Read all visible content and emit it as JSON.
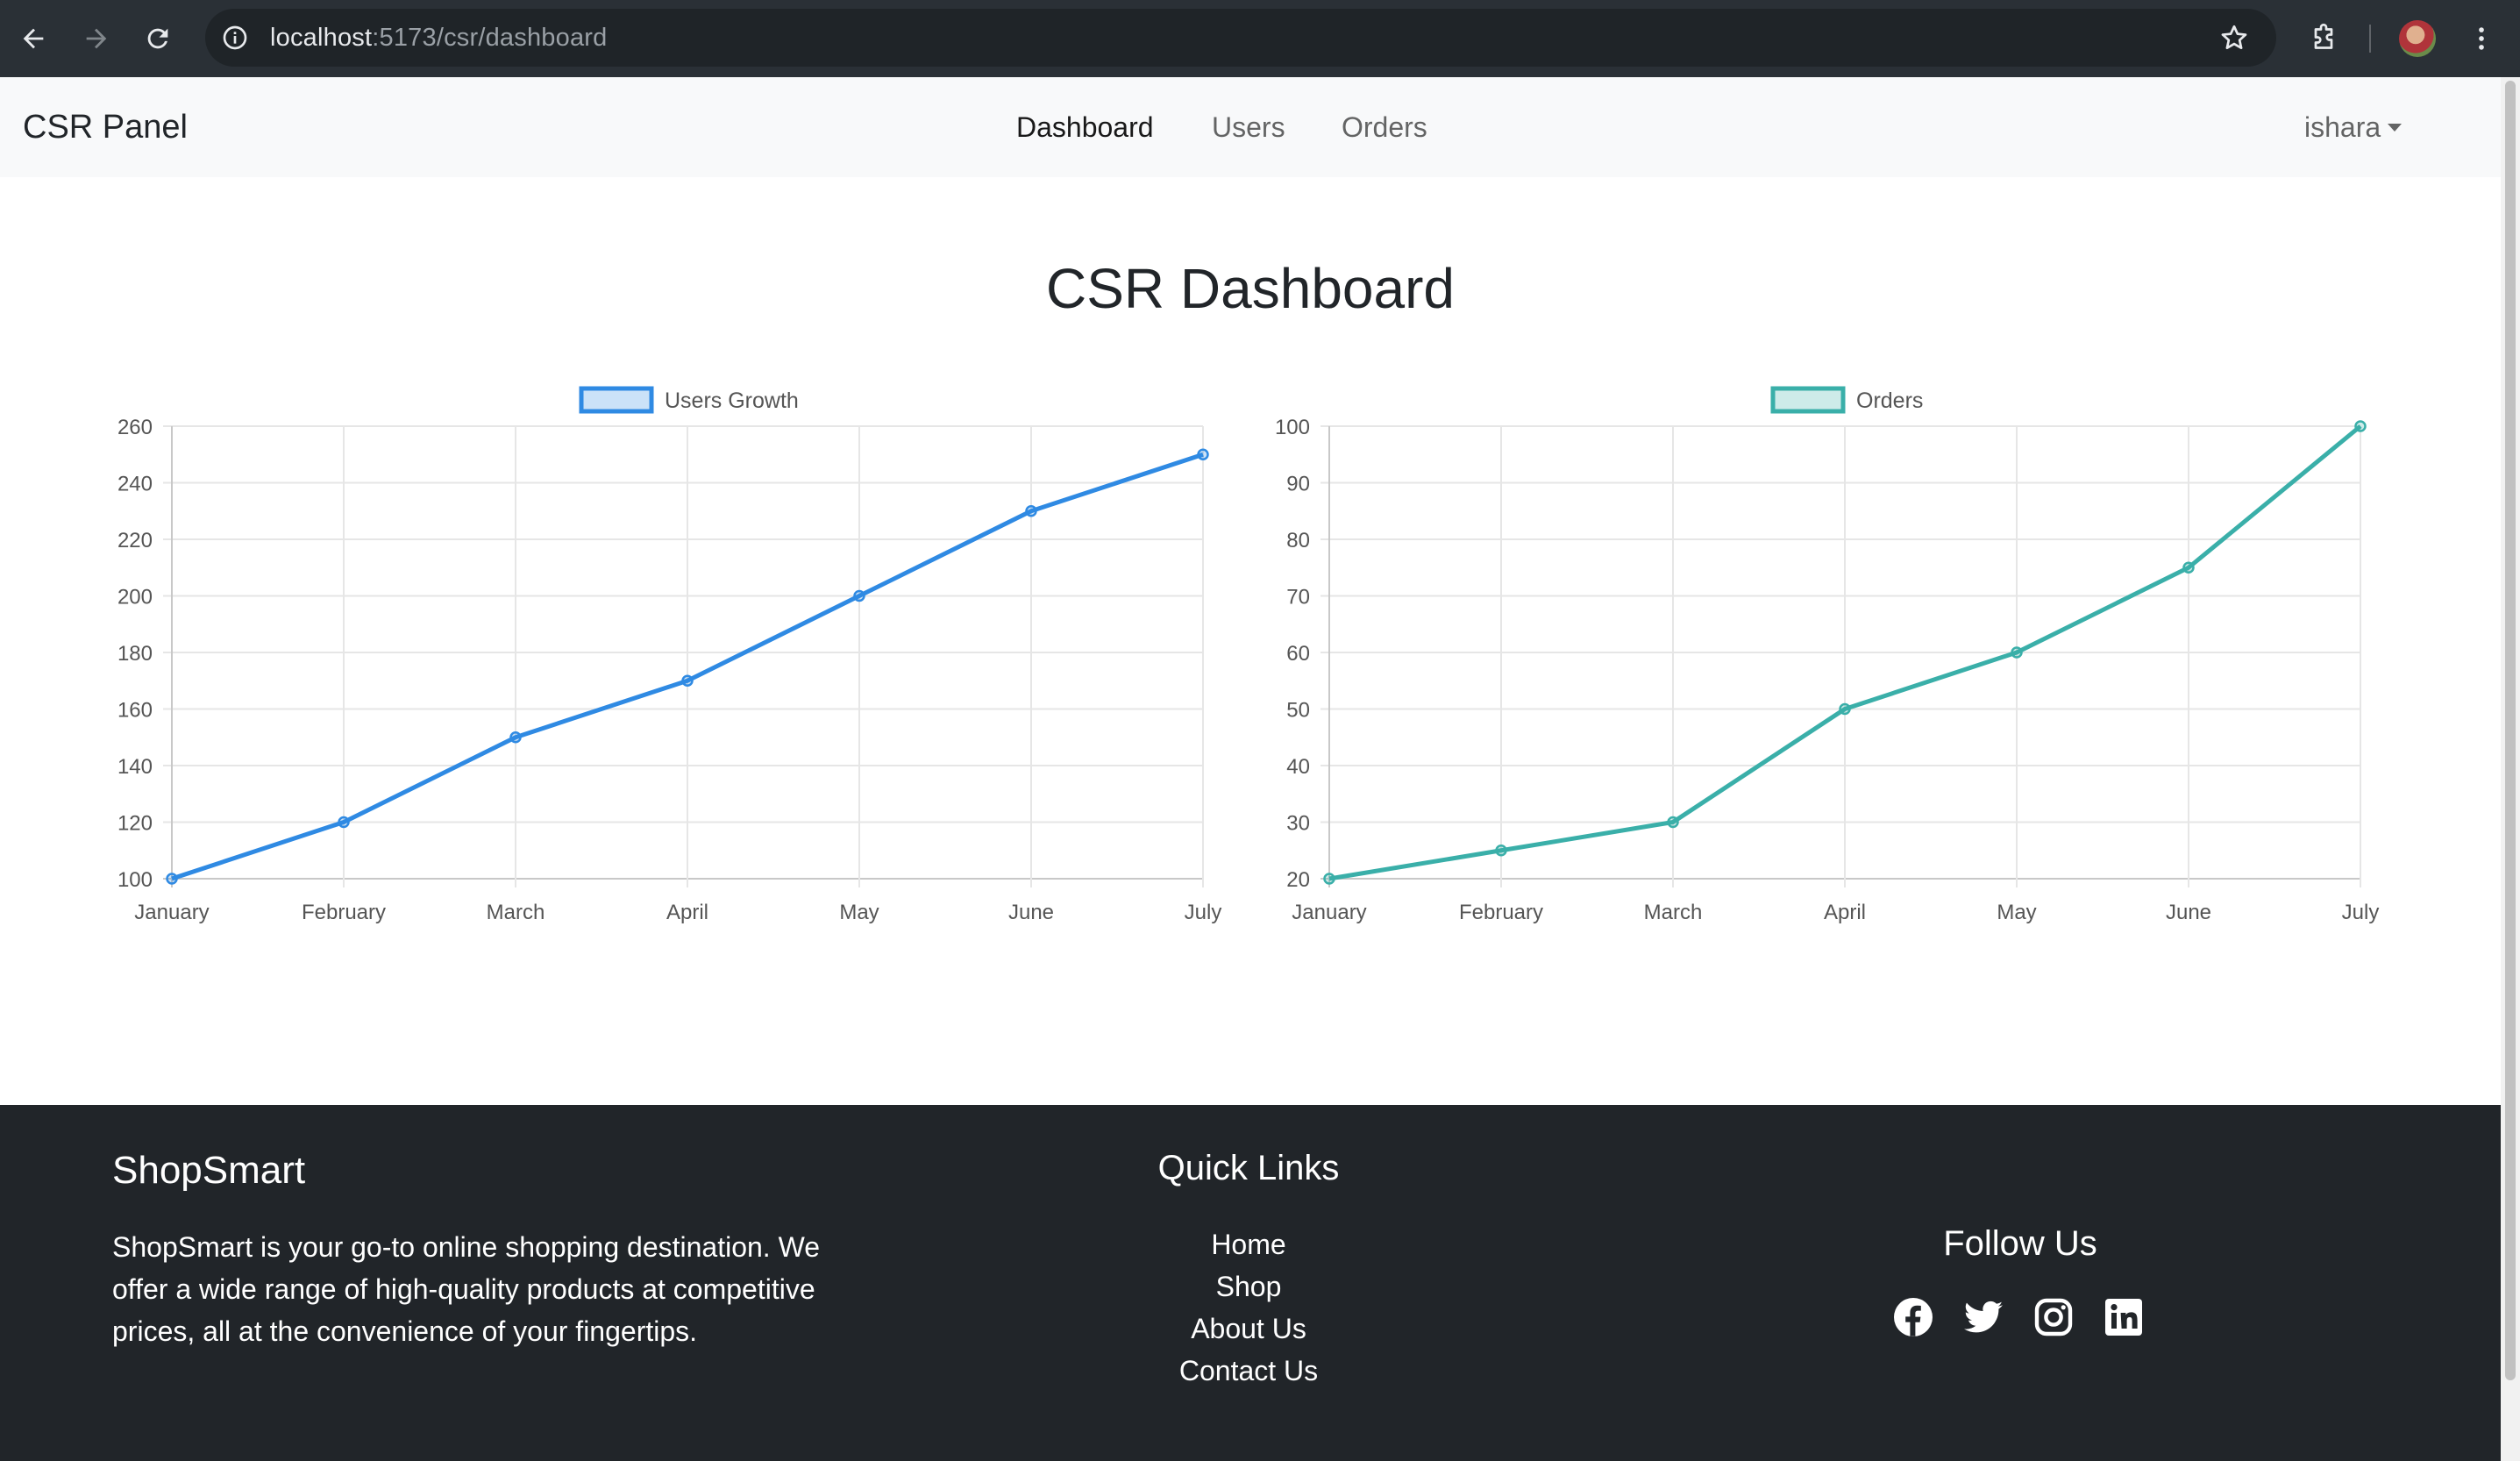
{
  "browser": {
    "url_host": "localhost",
    "url_path": ":5173/csr/dashboard",
    "icons": [
      "back-arrow-icon",
      "forward-arrow-icon",
      "reload-icon",
      "site-info-icon",
      "bookmark-star-icon",
      "extensions-icon",
      "profile-avatar",
      "more-vert-icon"
    ]
  },
  "navbar": {
    "brand": "CSR Panel",
    "links": [
      {
        "label": "Dashboard",
        "active": true
      },
      {
        "label": "Users",
        "active": false
      },
      {
        "label": "Orders",
        "active": false
      }
    ],
    "user": "ishara"
  },
  "main": {
    "title": "CSR Dashboard"
  },
  "chart_data": [
    {
      "type": "line",
      "categories": [
        "January",
        "February",
        "March",
        "April",
        "May",
        "June",
        "July"
      ],
      "series": [
        {
          "name": "Users Growth",
          "values": [
            100,
            120,
            150,
            170,
            200,
            230,
            250
          ],
          "color": "#2f8ae3"
        }
      ],
      "ylim": [
        100,
        260
      ],
      "yticks": [
        100,
        120,
        140,
        160,
        180,
        200,
        220,
        240,
        260
      ],
      "grid": true,
      "legend": "top"
    },
    {
      "type": "line",
      "categories": [
        "January",
        "February",
        "March",
        "April",
        "May",
        "June",
        "July"
      ],
      "series": [
        {
          "name": "Orders",
          "values": [
            20,
            25,
            30,
            50,
            60,
            75,
            100
          ],
          "color": "#3aafa9"
        }
      ],
      "ylim": [
        20,
        100
      ],
      "yticks": [
        20,
        30,
        40,
        50,
        60,
        70,
        80,
        90,
        100
      ],
      "grid": true,
      "legend": "top"
    }
  ],
  "footer": {
    "brand": "ShopSmart",
    "description": "ShopSmart is your go-to online shopping destination. We offer a wide range of high-quality products at competitive prices, all at the convenience of your fingertips.",
    "quick_links_title": "Quick Links",
    "quick_links": [
      "Home",
      "Shop",
      "About Us",
      "Contact Us"
    ],
    "follow_title": "Follow Us",
    "social_icons": [
      "facebook-icon",
      "twitter-icon",
      "instagram-icon",
      "linkedin-icon"
    ]
  },
  "colors": {
    "navbar_bg": "#f8f9fa",
    "footer_bg": "#212529",
    "users_line": "#2f8ae3",
    "orders_line": "#3aafa9"
  }
}
